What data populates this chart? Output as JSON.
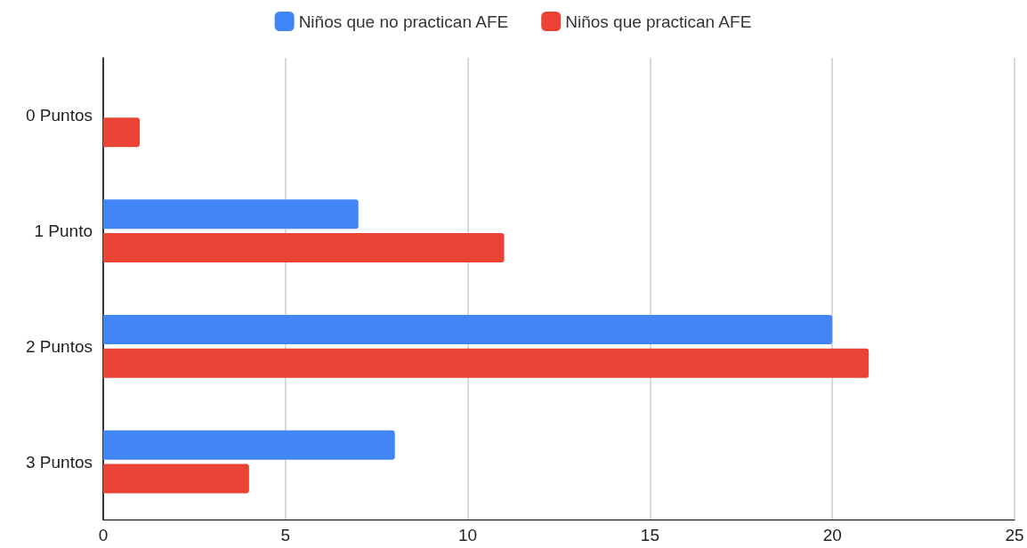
{
  "chart_data": {
    "type": "bar",
    "orientation": "horizontal",
    "categories": [
      "0 Puntos",
      "1 Punto",
      "2 Puntos",
      "3 Puntos"
    ],
    "series": [
      {
        "name": "Niños que no practican AFE",
        "color": "#4285f4",
        "values": [
          0,
          7,
          20,
          8
        ]
      },
      {
        "name": "Niños que practican AFE",
        "color": "#ea4335",
        "values": [
          1,
          11,
          21,
          4
        ]
      }
    ],
    "xlim": [
      0,
      25
    ],
    "xticks": [
      0,
      5,
      10,
      15,
      20,
      25
    ],
    "grid": "x",
    "legend": "top"
  }
}
